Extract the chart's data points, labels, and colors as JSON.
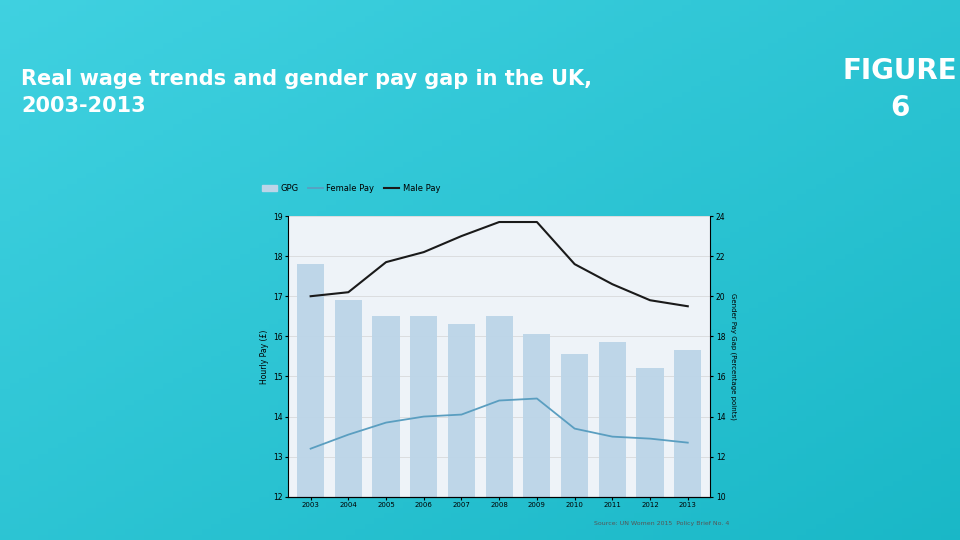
{
  "title": "Real wage trends and gender pay gap in the UK,\n2003-2013",
  "figure_label": "FIGURE\n6",
  "years": [
    2003,
    2004,
    2005,
    2006,
    2007,
    2008,
    2009,
    2010,
    2011,
    2012,
    2013
  ],
  "gpg_bars": [
    17.8,
    16.9,
    16.5,
    16.5,
    16.3,
    16.5,
    16.05,
    15.55,
    15.85,
    15.2,
    15.65
  ],
  "female_pay": [
    13.2,
    13.55,
    13.85,
    14.0,
    14.05,
    14.4,
    14.45,
    13.7,
    13.5,
    13.45,
    13.35
  ],
  "male_pay": [
    17.0,
    17.1,
    17.85,
    18.1,
    18.5,
    18.85,
    18.85,
    17.8,
    17.3,
    16.9,
    16.75
  ],
  "ylim_left": [
    12,
    19
  ],
  "ylim_right": [
    10,
    24
  ],
  "yticks_left": [
    12,
    13,
    14,
    15,
    16,
    17,
    18,
    19
  ],
  "yticks_right": [
    10,
    12,
    14,
    16,
    18,
    20,
    22,
    24
  ],
  "bar_color": "#bcd5e8",
  "female_line_color": "#5a9ec0",
  "male_line_color": "#1a1a1a",
  "chart_bg": "#eef3f8",
  "header_bg": "#2d2d2d",
  "header_text_color": "#ffffff",
  "figure_label_bg": "#4dc8d8",
  "figure_label_color": "#ffffff",
  "outer_bg_left": "#1aacbe",
  "outer_bg_right": "#1890aa",
  "source_text": "Source: UN Women 2015  Policy Brief No. 4",
  "ylabel_left": "Hourly Pay (£)",
  "ylabel_right": "Gender Pay Gap (Percentage points)",
  "legend_labels": [
    "GPG",
    "Female Pay",
    "Male Pay"
  ]
}
